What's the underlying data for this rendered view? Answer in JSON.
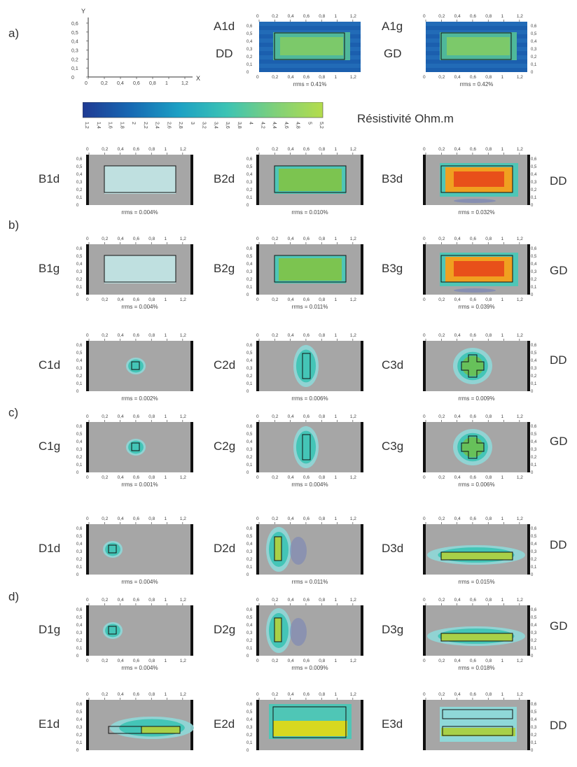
{
  "figure": {
    "sections": [
      "a)",
      "b)",
      "c)",
      "d)"
    ],
    "axis_x_letter": "X",
    "axis_y_letter": "Y",
    "top_ticks": [
      "0",
      "0,2",
      "0,4",
      "0,6",
      "0,8",
      "1",
      "1,2"
    ],
    "side_ticks": [
      "0,6",
      "0,5",
      "0,4",
      "0,3",
      "0,2",
      "0,1",
      "0"
    ],
    "colorbar": {
      "title": "Résistivité Ohm.m",
      "ticks": [
        "1,2",
        "1,4",
        "1,6",
        "1,8",
        "2",
        "2,2",
        "2,4",
        "2,6",
        "2,8",
        "3",
        "3,2",
        "3,4",
        "3,6",
        "3,8",
        "4",
        "4,2",
        "4,4",
        "4,6",
        "4,8",
        "5",
        "5,2"
      ],
      "colors": [
        "#1f3a93",
        "#1769b3",
        "#1ca0c4",
        "#3cc3b4",
        "#7fd07a",
        "#b4dc4c"
      ]
    },
    "config_labels": {
      "DD": "DD",
      "GD": "GD"
    },
    "panel_labels": {
      "A1d": "A1d",
      "A1g": "A1g",
      "B1d": "B1d",
      "B2d": "B2d",
      "B3d": "B3d",
      "B1g": "B1g",
      "B2g": "B2g",
      "B3g": "B3g",
      "C1d": "C1d",
      "C2d": "C2d",
      "C3d": "C3d",
      "C1g": "C1g",
      "C2g": "C2g",
      "C3g": "C3g",
      "D1d": "D1d",
      "D2d": "D2d",
      "D3d": "D3d",
      "D1g": "D1g",
      "D2g": "D2g",
      "D3g": "D3g",
      "E1d": "E1d",
      "E2d": "E2d",
      "E3d": "E3d"
    },
    "rrms": {
      "A1d": "rrms = 0.41%",
      "A1g": "rrms = 0.42%",
      "B1d": "rrms = 0.004%",
      "B2d": "rrms = 0.010%",
      "B3d": "rrms = 0.032%",
      "B1g": "rrms = 0.004%",
      "B2g": "rrms = 0.011%",
      "B3g": "rrms = 0.039%",
      "C1d": "rrms = 0.002%",
      "C2d": "rrms = 0.006%",
      "C3d": "rrms = 0.009%",
      "C1g": "rrms = 0.001%",
      "C2g": "rrms = 0.004%",
      "C3g": "rrms = 0.006%",
      "D1d": "rrms = 0.004%",
      "D2d": "rrms = 0.011%",
      "D3d": "rrms = 0.015%",
      "D1g": "rrms = 0.004%",
      "D2g": "rrms = 0.009%",
      "D3g": "rrms = 0.018%"
    }
  }
}
